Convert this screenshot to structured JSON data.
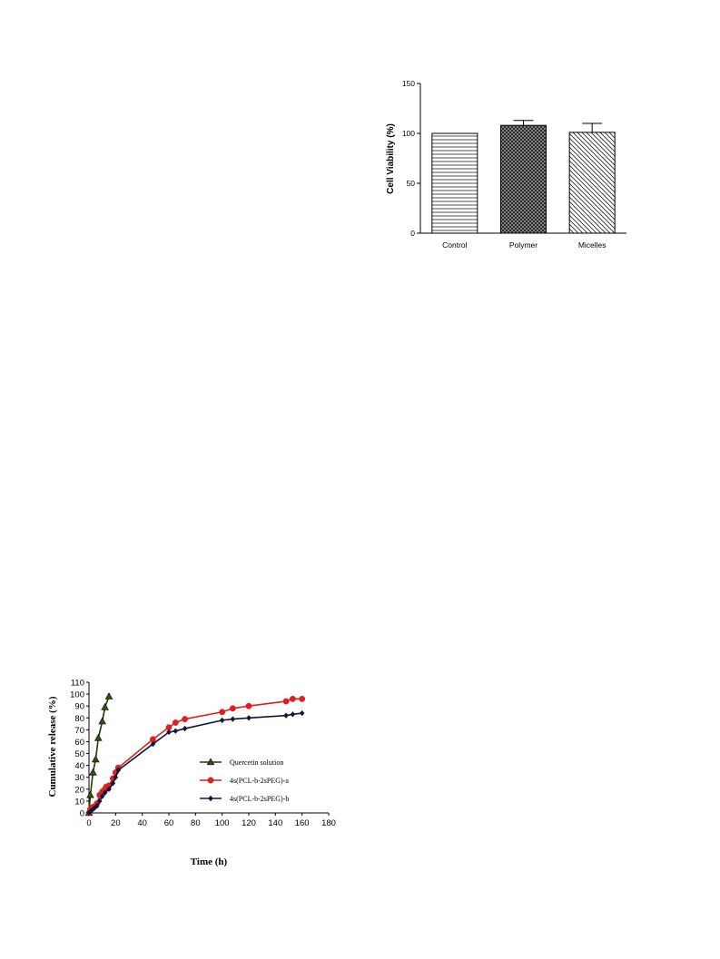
{
  "chart_data": [
    {
      "type": "bar",
      "title": "",
      "xlabel": "",
      "ylabel": "Cell Viability (%)",
      "ylim": [
        0,
        150
      ],
      "yticks": [
        0,
        50,
        100,
        150
      ],
      "categories": [
        "Control",
        "Polymer",
        "Micelles"
      ],
      "values": [
        100,
        108,
        101
      ],
      "errors": [
        0,
        5,
        9
      ],
      "patterns": [
        "horizontal-lines",
        "crosshatch",
        "diagonal-lines"
      ],
      "grid": false,
      "legend": "none"
    },
    {
      "type": "line",
      "title": "",
      "xlabel": "Time (h)",
      "ylabel": "Cumulative release (%)",
      "xlim": [
        0,
        180
      ],
      "ylim": [
        0,
        110
      ],
      "xticks": [
        0,
        20,
        40,
        60,
        80,
        100,
        120,
        140,
        160,
        180
      ],
      "yticks": [
        0,
        10,
        20,
        30,
        40,
        50,
        60,
        70,
        80,
        90,
        100,
        110
      ],
      "grid": false,
      "legend": "inside-right",
      "series": [
        {
          "name": "Quercetin solution",
          "color": "#1f3a0f",
          "marker": "triangle",
          "x": [
            0,
            1,
            3,
            5,
            7,
            10,
            12,
            15
          ],
          "y": [
            0,
            15,
            34,
            45,
            63,
            77,
            89,
            98
          ]
        },
        {
          "name": "4s(PCL-b-2sPEG)-a",
          "color": "#e02020",
          "marker": "circle",
          "x": [
            0,
            1,
            3,
            5,
            6,
            8,
            10,
            12,
            13,
            15,
            18,
            20,
            22,
            48,
            60,
            65,
            72,
            100,
            108,
            120,
            148,
            153,
            160
          ],
          "y": [
            0,
            3,
            5,
            6,
            8,
            15,
            18,
            20,
            22,
            23,
            29,
            34,
            38,
            62,
            72,
            76,
            79,
            85,
            88,
            90,
            94,
            96,
            96
          ]
        },
        {
          "name": "4s(PCL-b-2sPEG)-b",
          "color": "#10183a",
          "marker": "diamond",
          "x": [
            0,
            2,
            4,
            6,
            8,
            10,
            12,
            15,
            18,
            20,
            22,
            48,
            60,
            65,
            72,
            100,
            108,
            120,
            148,
            153,
            160
          ],
          "y": [
            0,
            2,
            4,
            6,
            10,
            14,
            17,
            20,
            25,
            30,
            36,
            58,
            68,
            69,
            71,
            78,
            79,
            80,
            82,
            83,
            84
          ]
        }
      ]
    }
  ]
}
